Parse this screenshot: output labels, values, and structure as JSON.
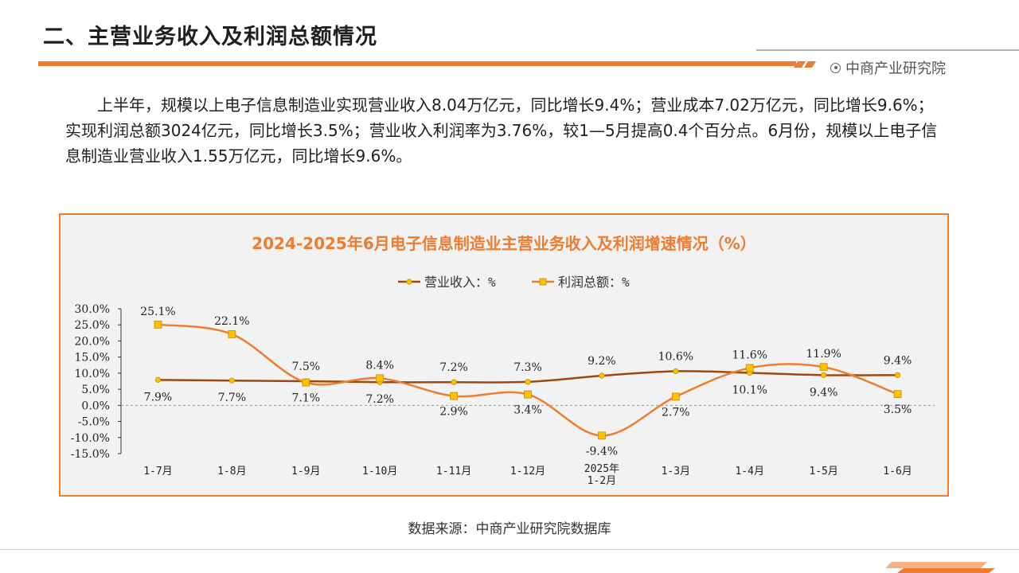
{
  "page": {
    "title": "二、主营业务收入及利润总额情况",
    "brand": "中商产业研究院",
    "paragraph": "上半年，规模以上电子信息制造业实现营业收入8.04万亿元，同比增长9.4%；营业成本7.02万亿元，同比增长9.6%；实现利润总额3024亿元，同比增长3.5%；营业收入利润率为3.76%，较1—5月提高0.4个百分点。6月份，规模以上电子信息制造业营业收入1.55万亿元，同比增长9.6%。",
    "source": "数据来源：中商产业研究院数据库"
  },
  "colors": {
    "accent": "#ed7d31",
    "revenue_line": "#9e480e",
    "profit_line": "#ed7d31",
    "marker_fill": "#ffc000",
    "chart_bg": "#f2f2f2"
  },
  "chart_data": {
    "type": "line",
    "title": "2024-2025年6月电子信息制造业主营业务收入及利润增速情况（%）",
    "categories": [
      "1-7月",
      "1-8月",
      "1-9月",
      "1-10月",
      "1-11月",
      "1-12月",
      "2025年\n1-2月",
      "1-3月",
      "1-4月",
      "1-5月",
      "1-6月"
    ],
    "series": [
      {
        "name": "营业收入：%",
        "values": [
          7.9,
          7.7,
          7.5,
          7.2,
          7.2,
          7.3,
          9.2,
          10.6,
          10.1,
          9.4,
          9.4
        ]
      },
      {
        "name": "利润总额：%",
        "values": [
          25.1,
          22.1,
          7.1,
          8.4,
          2.9,
          3.4,
          -9.4,
          2.7,
          11.6,
          11.9,
          3.5
        ]
      }
    ],
    "ylim": [
      -15,
      30
    ],
    "yticks": [
      30,
      25,
      20,
      15,
      10,
      5,
      0,
      -5,
      -10,
      -15
    ],
    "ytick_labels": [
      "30.0%",
      "25.0%",
      "20.0%",
      "15.0%",
      "10.0%",
      "5.0%",
      "0.0%",
      "-5.0%",
      "-10.0%",
      "-15.0%"
    ],
    "legend_position": "top",
    "grid": false
  }
}
